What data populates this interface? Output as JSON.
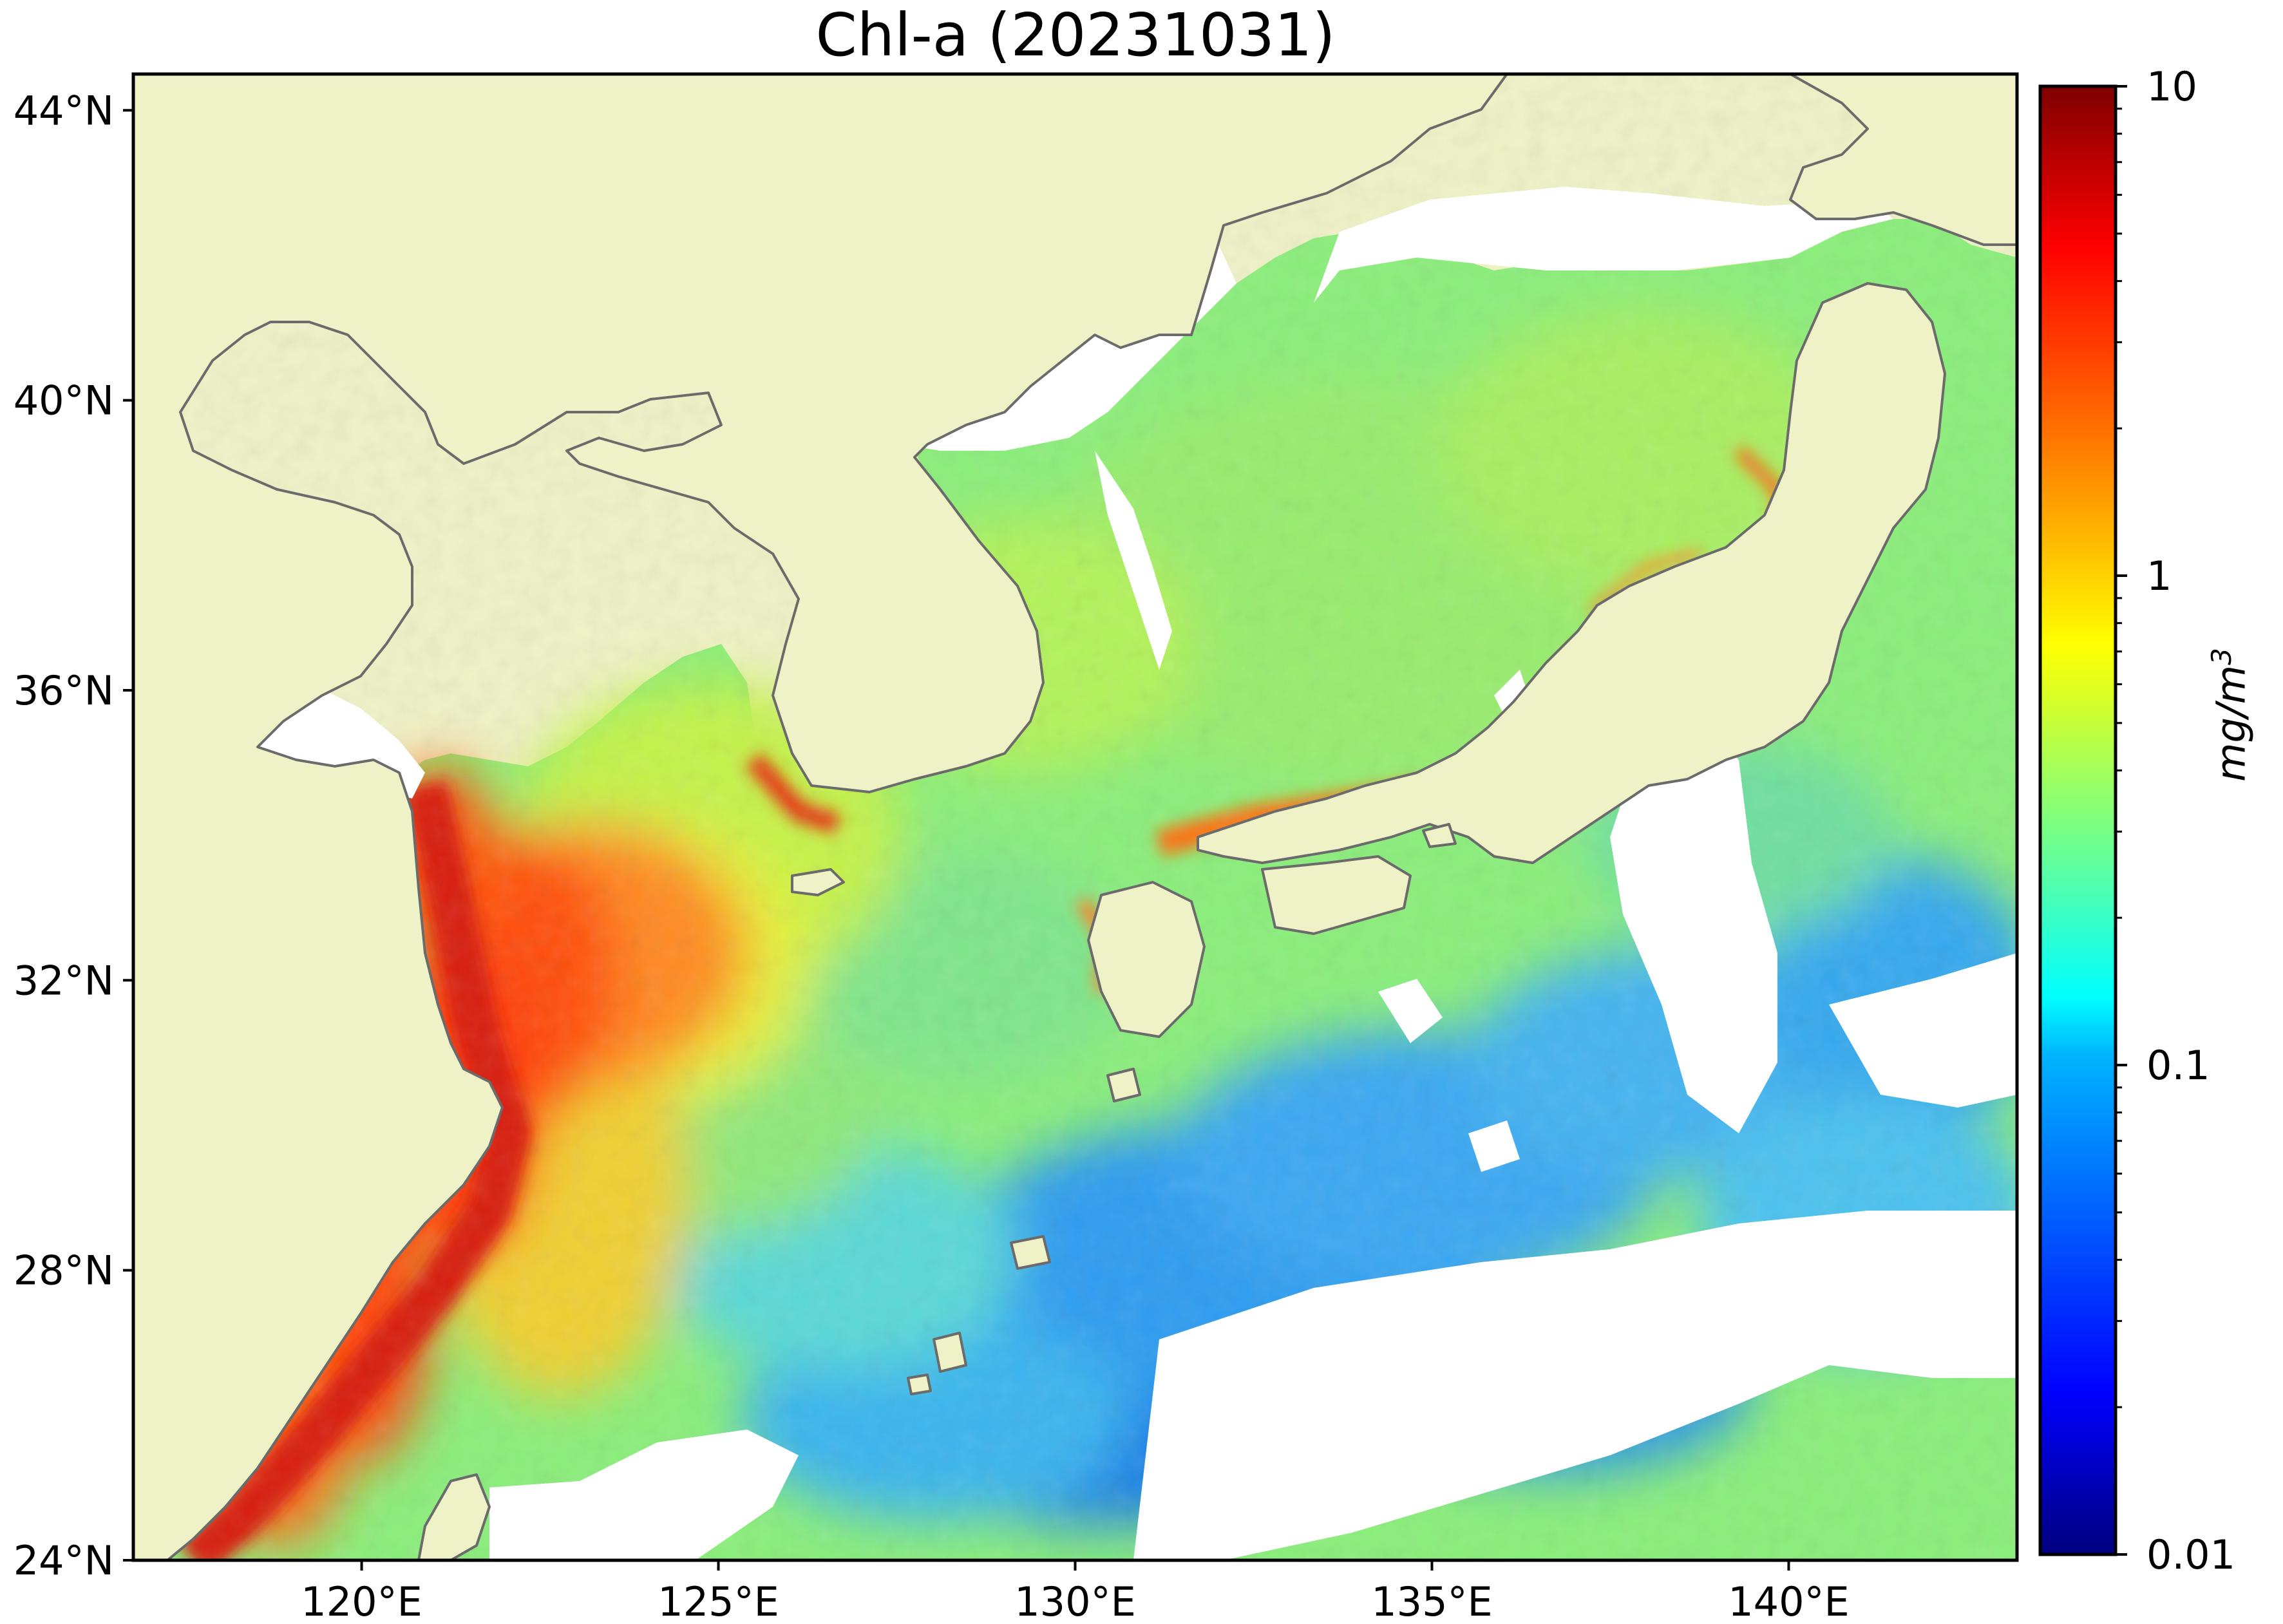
{
  "title": "Chl-a (20231031)",
  "map": {
    "lon_range": [
      116.8,
      143.2
    ],
    "lat_range": [
      24,
      44.5
    ],
    "lon_ticks": [
      {
        "value": 120,
        "label": "120°E"
      },
      {
        "value": 125,
        "label": "125°E"
      },
      {
        "value": 130,
        "label": "130°E"
      },
      {
        "value": 135,
        "label": "135°E"
      },
      {
        "value": 140,
        "label": "140°E"
      }
    ],
    "lat_ticks": [
      {
        "value": 44,
        "label": "44°N"
      },
      {
        "value": 40,
        "label": "40°N"
      },
      {
        "value": 36,
        "label": "36°N"
      },
      {
        "value": 32,
        "label": "32°N"
      },
      {
        "value": 28,
        "label": "28°N"
      },
      {
        "value": 24,
        "label": "24°N"
      }
    ],
    "land_color": "#eff2c6",
    "coastline_color": "#666666",
    "no_data_color": "#ffffff"
  },
  "colorbar": {
    "scale": "log",
    "range": [
      0.01,
      10
    ],
    "colormap": "jet",
    "colors": [
      "#00007f",
      "#0000ff",
      "#007fff",
      "#00ffff",
      "#7fff7f",
      "#ffff00",
      "#ff7f00",
      "#ff0000",
      "#7f0000"
    ],
    "ticks": [
      {
        "value": 10,
        "label": "10"
      },
      {
        "value": 1,
        "label": "1"
      },
      {
        "value": 0.1,
        "label": "0.1"
      },
      {
        "value": 0.01,
        "label": "0.01"
      }
    ],
    "unit_base": "mg/m",
    "unit_exp": "3"
  }
}
